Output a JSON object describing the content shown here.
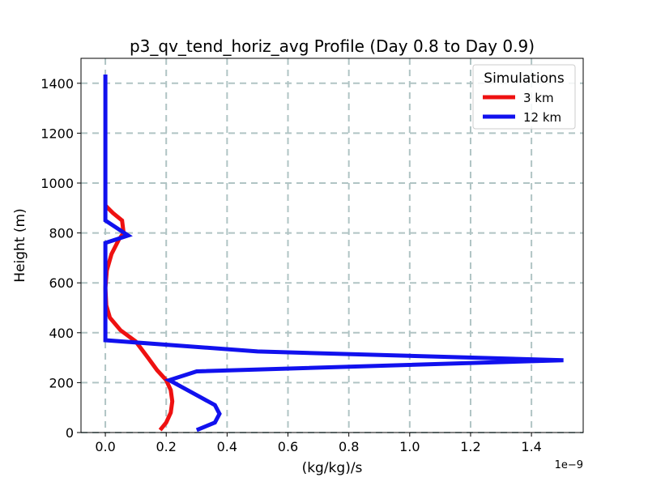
{
  "chart_data": {
    "type": "line",
    "title": "p3_qv_tend_horiz_avg Profile (Day 0.8 to Day 0.9)",
    "xlabel": "(kg/kg)/s",
    "ylabel": "Height (m)",
    "x_offset_label": "1e−9",
    "xlim": [
      -0.08,
      1.57
    ],
    "ylim": [
      0,
      1500
    ],
    "xticks": [
      0.0,
      0.2,
      0.4,
      0.6,
      0.8,
      1.0,
      1.2,
      1.4
    ],
    "xtick_labels": [
      "0.0",
      "0.2",
      "0.4",
      "0.6",
      "0.8",
      "1.0",
      "1.2",
      "1.4"
    ],
    "yticks": [
      0,
      200,
      400,
      600,
      800,
      1000,
      1200,
      1400
    ],
    "ytick_labels": [
      "0",
      "200",
      "400",
      "600",
      "800",
      "1000",
      "1200",
      "1400"
    ],
    "grid": true,
    "legend": {
      "title": "Simulations",
      "position": "top-right"
    },
    "series": [
      {
        "name": "3 km",
        "color": "#ee1111",
        "x": [
          0.18,
          0.2,
          0.215,
          0.22,
          0.215,
          0.2,
          0.17,
          0.14,
          0.1,
          0.05,
          0.015,
          0.003,
          0.0,
          0.005,
          0.02,
          0.045,
          0.06,
          0.055,
          0.025,
          0.0
        ],
        "y": [
          10,
          40,
          80,
          125,
          170,
          210,
          250,
          300,
          365,
          410,
          460,
          510,
          580,
          650,
          715,
          775,
          800,
          850,
          880,
          910
        ]
      },
      {
        "name": "12 km",
        "color": "#1111ee",
        "x": [
          0.3,
          0.36,
          0.375,
          0.36,
          0.3,
          0.21,
          0.3,
          1.505,
          0.5,
          0.0,
          0.0,
          0.0,
          0.0,
          0.0,
          0.075,
          0.0,
          0.0,
          0.0,
          0.0
        ],
        "y": [
          10,
          40,
          75,
          110,
          150,
          210,
          245,
          290,
          325,
          370,
          500,
          640,
          745,
          760,
          790,
          850,
          1000,
          1200,
          1435
        ]
      }
    ]
  }
}
